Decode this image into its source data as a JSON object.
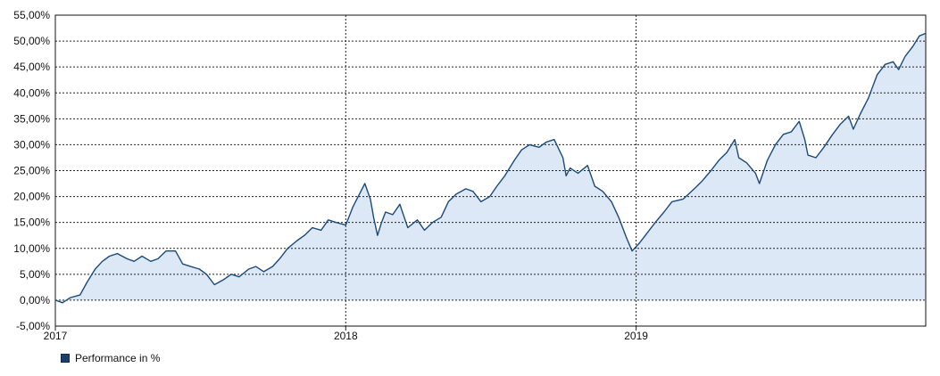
{
  "chart_data": {
    "type": "area",
    "title": "",
    "xlabel": "",
    "ylabel": "",
    "x_range": [
      "2017-01-01",
      "2019-12-31"
    ],
    "ylim": [
      -5,
      55
    ],
    "y_ticks": [
      "55,00%",
      "50,00%",
      "45,00%",
      "40,00%",
      "35,00%",
      "30,00%",
      "25,00%",
      "20,00%",
      "15,00%",
      "10,00%",
      "5,00%",
      "0,00%",
      "-5,00%"
    ],
    "x_ticks": [
      "2017",
      "2018",
      "2019"
    ],
    "grid": true,
    "legend_position": "bottom-left",
    "colors": {
      "line": "#1b4a7a",
      "fill": "#dce8f5",
      "grid": "#222222",
      "swatch": "#1b3f6b"
    },
    "series": [
      {
        "name": "Performance in %",
        "points": [
          [
            "2017-01-01",
            0.0
          ],
          [
            "2017-01-10",
            -0.5
          ],
          [
            "2017-01-20",
            0.5
          ],
          [
            "2017-02-01",
            1.0
          ],
          [
            "2017-02-10",
            3.5
          ],
          [
            "2017-02-20",
            6.0
          ],
          [
            "2017-03-01",
            7.5
          ],
          [
            "2017-03-10",
            8.5
          ],
          [
            "2017-03-20",
            9.0
          ],
          [
            "2017-04-01",
            8.0
          ],
          [
            "2017-04-10",
            7.5
          ],
          [
            "2017-04-20",
            8.5
          ],
          [
            "2017-05-01",
            7.5
          ],
          [
            "2017-05-10",
            8.0
          ],
          [
            "2017-05-20",
            9.5
          ],
          [
            "2017-06-01",
            9.5
          ],
          [
            "2017-06-10",
            7.0
          ],
          [
            "2017-06-20",
            6.5
          ],
          [
            "2017-07-01",
            6.0
          ],
          [
            "2017-07-10",
            5.0
          ],
          [
            "2017-07-20",
            3.0
          ],
          [
            "2017-08-01",
            4.0
          ],
          [
            "2017-08-10",
            5.0
          ],
          [
            "2017-08-20",
            4.5
          ],
          [
            "2017-09-01",
            6.0
          ],
          [
            "2017-09-10",
            6.5
          ],
          [
            "2017-09-20",
            5.5
          ],
          [
            "2017-10-01",
            6.5
          ],
          [
            "2017-10-10",
            8.0
          ],
          [
            "2017-10-20",
            10.0
          ],
          [
            "2017-11-01",
            11.5
          ],
          [
            "2017-11-10",
            12.5
          ],
          [
            "2017-11-20",
            14.0
          ],
          [
            "2017-12-01",
            13.5
          ],
          [
            "2017-12-10",
            15.5
          ],
          [
            "2017-12-20",
            15.0
          ],
          [
            "2018-01-01",
            14.5
          ],
          [
            "2018-01-10",
            18.0
          ],
          [
            "2018-01-20",
            21.0
          ],
          [
            "2018-01-25",
            22.5
          ],
          [
            "2018-02-01",
            19.5
          ],
          [
            "2018-02-05",
            16.0
          ],
          [
            "2018-02-10",
            12.5
          ],
          [
            "2018-02-15",
            15.0
          ],
          [
            "2018-02-20",
            17.0
          ],
          [
            "2018-03-01",
            16.5
          ],
          [
            "2018-03-10",
            18.5
          ],
          [
            "2018-03-20",
            14.0
          ],
          [
            "2018-04-01",
            15.5
          ],
          [
            "2018-04-10",
            13.5
          ],
          [
            "2018-04-20",
            15.0
          ],
          [
            "2018-05-01",
            16.0
          ],
          [
            "2018-05-10",
            19.0
          ],
          [
            "2018-05-20",
            20.5
          ],
          [
            "2018-06-01",
            21.5
          ],
          [
            "2018-06-10",
            21.0
          ],
          [
            "2018-06-20",
            19.0
          ],
          [
            "2018-07-01",
            20.0
          ],
          [
            "2018-07-10",
            22.0
          ],
          [
            "2018-07-20",
            24.0
          ],
          [
            "2018-08-01",
            27.0
          ],
          [
            "2018-08-10",
            29.0
          ],
          [
            "2018-08-20",
            30.0
          ],
          [
            "2018-09-01",
            29.5
          ],
          [
            "2018-09-10",
            30.5
          ],
          [
            "2018-09-20",
            31.0
          ],
          [
            "2018-10-01",
            27.5
          ],
          [
            "2018-10-05",
            24.0
          ],
          [
            "2018-10-10",
            25.5
          ],
          [
            "2018-10-20",
            24.5
          ],
          [
            "2018-11-01",
            26.0
          ],
          [
            "2018-11-10",
            22.0
          ],
          [
            "2018-11-20",
            21.0
          ],
          [
            "2018-12-01",
            19.0
          ],
          [
            "2018-12-10",
            16.0
          ],
          [
            "2018-12-20",
            12.0
          ],
          [
            "2018-12-27",
            9.5
          ],
          [
            "2019-01-05",
            11.0
          ],
          [
            "2019-01-15",
            13.0
          ],
          [
            "2019-01-25",
            15.0
          ],
          [
            "2019-02-05",
            17.0
          ],
          [
            "2019-02-15",
            19.0
          ],
          [
            "2019-03-01",
            19.5
          ],
          [
            "2019-03-15",
            21.5
          ],
          [
            "2019-03-25",
            23.0
          ],
          [
            "2019-04-05",
            25.0
          ],
          [
            "2019-04-15",
            27.0
          ],
          [
            "2019-04-25",
            28.5
          ],
          [
            "2019-05-05",
            31.0
          ],
          [
            "2019-05-10",
            27.5
          ],
          [
            "2019-05-20",
            26.5
          ],
          [
            "2019-05-31",
            24.5
          ],
          [
            "2019-06-05",
            22.5
          ],
          [
            "2019-06-15",
            27.0
          ],
          [
            "2019-06-25",
            30.0
          ],
          [
            "2019-07-05",
            32.0
          ],
          [
            "2019-07-15",
            32.5
          ],
          [
            "2019-07-25",
            34.5
          ],
          [
            "2019-08-01",
            31.0
          ],
          [
            "2019-08-05",
            28.0
          ],
          [
            "2019-08-15",
            27.5
          ],
          [
            "2019-08-25",
            29.5
          ],
          [
            "2019-09-05",
            32.0
          ],
          [
            "2019-09-15",
            34.0
          ],
          [
            "2019-09-25",
            35.5
          ],
          [
            "2019-10-01",
            33.0
          ],
          [
            "2019-10-10",
            36.0
          ],
          [
            "2019-10-20",
            39.0
          ],
          [
            "2019-10-31",
            43.5
          ],
          [
            "2019-11-10",
            45.5
          ],
          [
            "2019-11-20",
            46.0
          ],
          [
            "2019-11-27",
            44.5
          ],
          [
            "2019-12-05",
            47.0
          ],
          [
            "2019-12-15",
            49.0
          ],
          [
            "2019-12-23",
            51.0
          ],
          [
            "2019-12-31",
            51.5
          ]
        ]
      }
    ]
  }
}
